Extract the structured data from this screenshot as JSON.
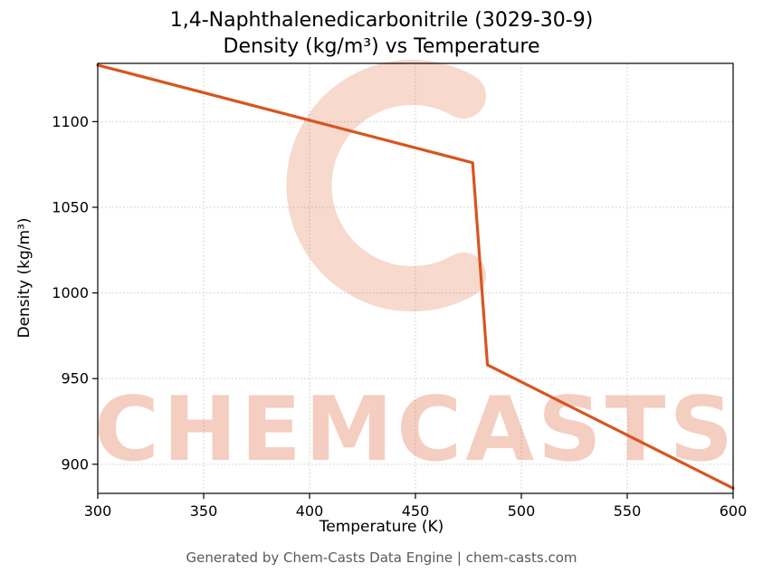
{
  "chart_data": {
    "type": "line",
    "title_line1": "1,4-Naphthalenedicarbonitrile (3029-30-9)",
    "title_line2": "Density (kg/m³) vs Temperature",
    "xlabel": "Temperature (K)",
    "ylabel": "Density (kg/m³)",
    "xlim": [
      300,
      600
    ],
    "ylim": [
      883,
      1134
    ],
    "xticks": [
      300,
      350,
      400,
      450,
      500,
      550,
      600
    ],
    "yticks": [
      900,
      950,
      1000,
      1050,
      1100
    ],
    "grid": true,
    "legend": "none",
    "line_color": "#d9541f",
    "series": [
      {
        "name": "Density",
        "x": [
          300,
          477,
          484,
          600
        ],
        "y": [
          1133,
          1076,
          958,
          886
        ]
      }
    ]
  },
  "watermark": {
    "text": "CHEMCASTS",
    "color": "#d9541f"
  },
  "footer": {
    "text": "Generated by Chem-Casts Data Engine | chem-casts.com"
  }
}
